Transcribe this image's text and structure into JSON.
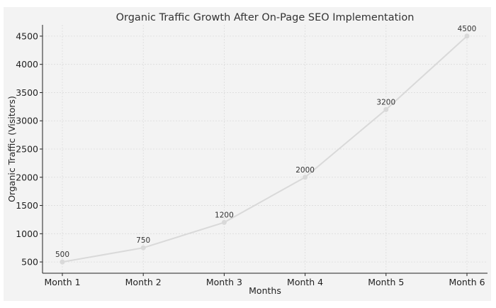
{
  "chart_data": {
    "type": "line",
    "title": "Organic Traffic Growth After On-Page SEO Implementation",
    "xlabel": "Months",
    "ylabel": "Organic Traffic (Visitors)",
    "categories": [
      "Month 1",
      "Month 2",
      "Month 3",
      "Month 4",
      "Month 5",
      "Month 6"
    ],
    "values": [
      500,
      750,
      1200,
      2000,
      3200,
      4500
    ],
    "data_labels": [
      "500",
      "750",
      "1200",
      "2000",
      "3200",
      "4500"
    ],
    "ylim": [
      300,
      4700
    ],
    "yticks": [
      500,
      1000,
      1500,
      2000,
      2500,
      3000,
      3500,
      4000,
      4500
    ],
    "ytick_labels": [
      "500",
      "1000",
      "1500",
      "2000",
      "2500",
      "3000",
      "3500",
      "4000",
      "4500"
    ],
    "grid": true,
    "line_color": "#d9d9d9",
    "marker_color": "#d9d9d9"
  }
}
